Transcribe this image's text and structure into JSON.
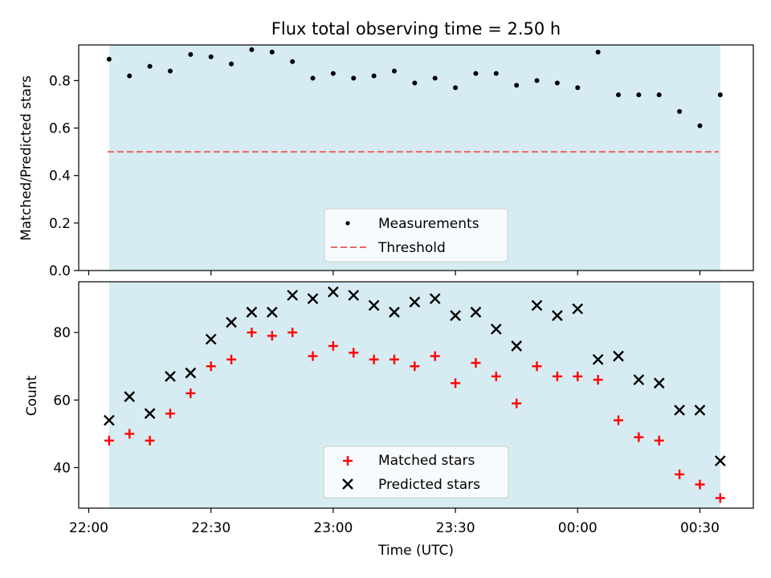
{
  "chart_data": [
    {
      "type": "scatter",
      "title": "Flux total observing time = 2.50 h",
      "xlabel": "",
      "ylabel": "Matched/Predicted stars",
      "ylim": [
        0,
        0.95
      ],
      "yticks": [
        "0.0",
        "0.2",
        "0.4",
        "0.6",
        "0.8"
      ],
      "x": [
        "22:05",
        "22:10",
        "22:15",
        "22:20",
        "22:25",
        "22:30",
        "22:35",
        "22:40",
        "22:45",
        "22:50",
        "22:55",
        "23:00",
        "23:05",
        "23:10",
        "23:15",
        "23:20",
        "23:25",
        "23:30",
        "23:35",
        "23:40",
        "23:45",
        "23:50",
        "23:55",
        "00:00",
        "00:05",
        "00:10",
        "00:15",
        "00:20",
        "00:25",
        "00:30",
        "00:35"
      ],
      "series": [
        {
          "name": "Measurements",
          "color": "#000000",
          "values": [
            0.89,
            0.82,
            0.86,
            0.84,
            0.91,
            0.9,
            0.87,
            0.93,
            0.92,
            0.88,
            0.81,
            0.83,
            0.81,
            0.82,
            0.84,
            0.79,
            0.81,
            0.77,
            0.83,
            0.83,
            0.78,
            0.8,
            0.79,
            0.77,
            0.92,
            0.74,
            0.74,
            0.74,
            0.67,
            0.61,
            0.74
          ]
        }
      ],
      "threshold": {
        "name": "Threshold",
        "value": 0.5,
        "color": "#ee6666"
      },
      "legend": "lower-center",
      "grid": false
    },
    {
      "type": "scatter",
      "xlabel": "Time (UTC)",
      "ylabel": "Count",
      "ylim": [
        28,
        95
      ],
      "yticks": [
        "40",
        "60",
        "80"
      ],
      "xticks": [
        "22:00",
        "22:30",
        "23:00",
        "23:30",
        "00:00",
        "00:30"
      ],
      "x": [
        "22:05",
        "22:10",
        "22:15",
        "22:20",
        "22:25",
        "22:30",
        "22:35",
        "22:40",
        "22:45",
        "22:50",
        "22:55",
        "23:00",
        "23:05",
        "23:10",
        "23:15",
        "23:20",
        "23:25",
        "23:30",
        "23:35",
        "23:40",
        "23:45",
        "23:50",
        "23:55",
        "00:00",
        "00:05",
        "00:10",
        "00:15",
        "00:20",
        "00:25",
        "00:30",
        "00:35"
      ],
      "series": [
        {
          "name": "Matched stars",
          "color": "#ff0000",
          "marker": "plus",
          "values": [
            48,
            50,
            48,
            56,
            62,
            70,
            72,
            80,
            79,
            80,
            73,
            76,
            74,
            72,
            72,
            70,
            73,
            65,
            71,
            67,
            59,
            70,
            67,
            67,
            66,
            54,
            49,
            48,
            38,
            35,
            31
          ]
        },
        {
          "name": "Predicted stars",
          "color": "#000000",
          "marker": "x",
          "values": [
            54,
            61,
            56,
            67,
            68,
            78,
            83,
            86,
            86,
            91,
            90,
            92,
            91,
            88,
            86,
            89,
            90,
            85,
            86,
            81,
            76,
            88,
            85,
            87,
            72,
            73,
            66,
            65,
            57,
            57,
            42
          ]
        }
      ],
      "legend": "lower-center",
      "grid": false
    }
  ],
  "observing_span": {
    "start": "22:05",
    "end": "00:35",
    "color": "#add8e6"
  }
}
